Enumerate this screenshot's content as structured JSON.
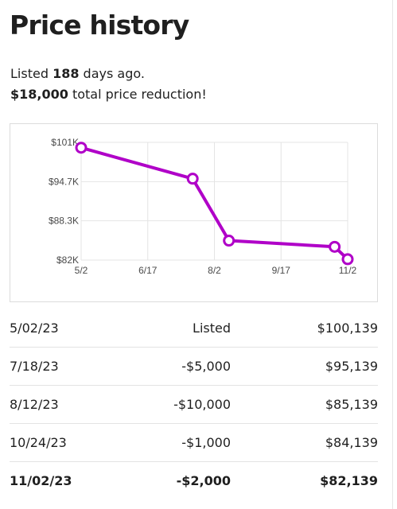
{
  "page": {
    "title": "Price history",
    "listed_prefix": "Listed ",
    "listed_days": "188",
    "listed_suffix": " days ago.",
    "reduction_amount": "$18,000",
    "reduction_suffix": " total price reduction!"
  },
  "chart_data": {
    "type": "line",
    "title": "",
    "xlabel": "",
    "ylabel": "",
    "x_ticks": [
      "5/2",
      "6/17",
      "8/2",
      "9/17",
      "11/2"
    ],
    "y_ticks": [
      "$101K",
      "$94.7K",
      "$88.3K",
      "$82K"
    ],
    "grid": true,
    "line_color": "#b000c8",
    "series": [
      {
        "x": [
          "5/02/23",
          "7/18/23",
          "8/12/23",
          "10/24/23",
          "11/02/23"
        ],
        "values": [
          100139,
          95139,
          85139,
          84139,
          82139
        ]
      }
    ]
  },
  "history": {
    "rows": [
      {
        "date": "5/02/23",
        "change": "Listed",
        "price": "$100,139"
      },
      {
        "date": "7/18/23",
        "change": "-$5,000",
        "price": "$95,139"
      },
      {
        "date": "8/12/23",
        "change": "-$10,000",
        "price": "$85,139"
      },
      {
        "date": "10/24/23",
        "change": "-$1,000",
        "price": "$84,139"
      },
      {
        "date": "11/02/23",
        "change": "-$2,000",
        "price": "$82,139"
      }
    ]
  }
}
